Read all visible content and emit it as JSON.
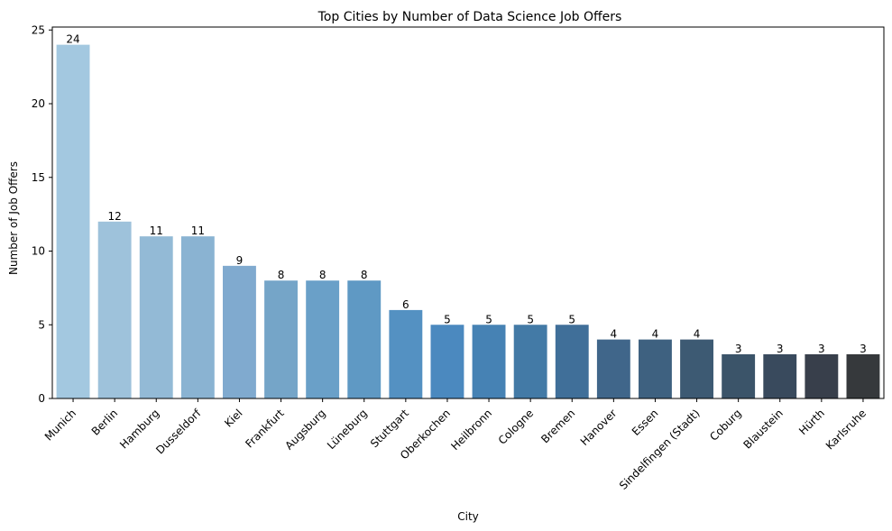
{
  "chart_data": {
    "type": "bar",
    "title": "Top Cities by Number of Data Science Job Offers",
    "xlabel": "City",
    "ylabel": "Number of Job Offers",
    "ylim": [
      0,
      25.2
    ],
    "yticks": [
      0,
      5,
      10,
      15,
      20,
      25
    ],
    "grid": false,
    "legend": "none",
    "categories": [
      "Munich",
      "Berlin",
      "Hamburg",
      "Dusseldorf",
      "Kiel",
      "Frankfurt",
      "Augsburg",
      "Lüneburg",
      "Stuttgart",
      "Oberkochen",
      "Heilbronn",
      "Cologne",
      "Bremen",
      "Hanover",
      "Essen",
      "Sindelfingen (Stadt)",
      "Coburg",
      "Blaustein",
      "Hürth",
      "Karlsruhe"
    ],
    "values": [
      24,
      12,
      11,
      11,
      9,
      8,
      8,
      8,
      6,
      5,
      5,
      5,
      5,
      4,
      4,
      4,
      3,
      3,
      3,
      3
    ],
    "colors": [
      "#a3c8e0",
      "#9ec2db",
      "#93bad6",
      "#8ab3d2",
      "#80aacf",
      "#75a5c8",
      "#6aa0c8",
      "#5f99c4",
      "#5491c2",
      "#4b89bf",
      "#4682b4",
      "#437aa6",
      "#406f99",
      "#40668a",
      "#3e6180",
      "#3d5a73",
      "#3b5469",
      "#394a5d",
      "#383f4b",
      "#36393c"
    ]
  }
}
